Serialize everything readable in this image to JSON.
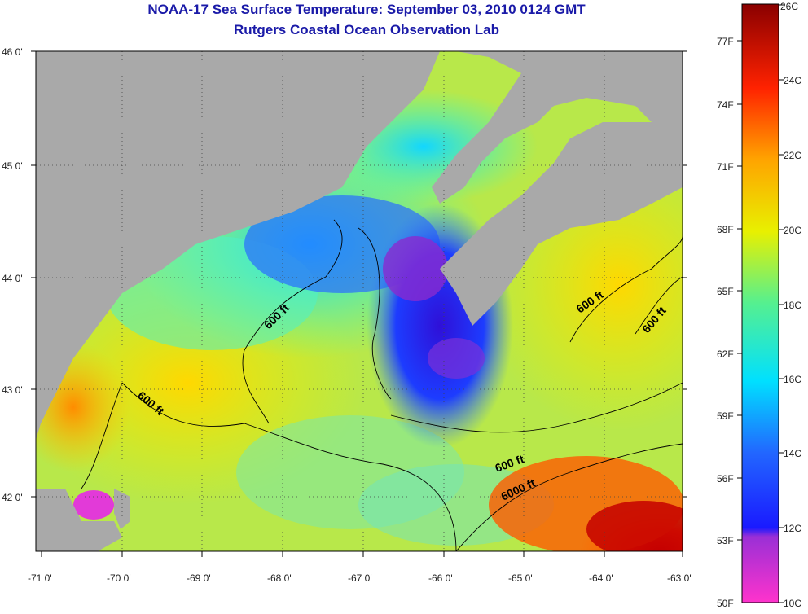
{
  "title": {
    "line1": "NOAA-17 Sea Surface Temperature:  September 03, 2010 0124 GMT",
    "line2": "Rutgers Coastal Ocean Observation Lab"
  },
  "lat_labels": [
    "46 0'",
    "45 0'",
    "44 0'",
    "43 0'",
    "42 0'"
  ],
  "lon_labels": [
    "-71 0'",
    "-70 0'",
    "-69 0'",
    "-68 0'",
    "-67 0'",
    "-66 0'",
    "-65 0'",
    "-64 0'",
    "-63 0'"
  ],
  "contour_labels": [
    "600 ft",
    "600 ft",
    "600 ft",
    "600 ft",
    "600 ft",
    "6000 ft"
  ],
  "colorbar": {
    "celsius": [
      "26C",
      "24C",
      "22C",
      "20C",
      "18C",
      "16C",
      "14C",
      "12C",
      "10C"
    ],
    "fahrenheit": [
      "77F",
      "74F",
      "71F",
      "68F",
      "65F",
      "62F",
      "59F",
      "56F",
      "53F",
      "50F"
    ]
  },
  "colors": {
    "title": "#1a1aa8",
    "land": "#a9a9a9",
    "contour": "#000000"
  }
}
